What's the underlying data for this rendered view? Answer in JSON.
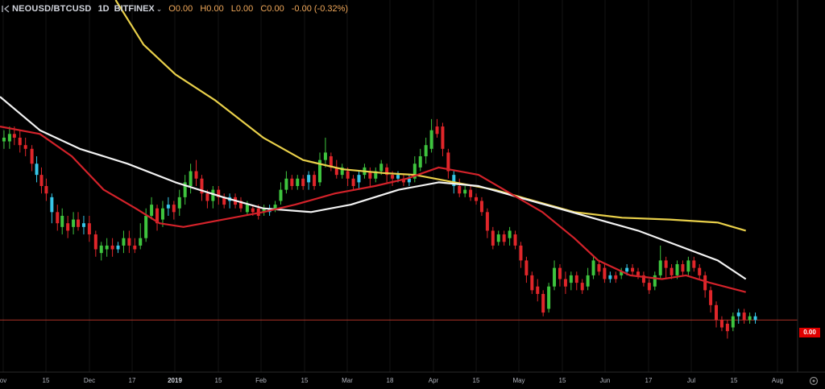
{
  "header": {
    "symbol": "NEOUSD/BTCUSD",
    "timeframe": "1D",
    "exchange": "BITFINEX",
    "open": "O0.00",
    "high": "H0.00",
    "low": "L0.00",
    "close": "C0.00",
    "change": "-0.00 (-0.32%)"
  },
  "price_label": "0.00",
  "colors": {
    "up": "#3ec43e",
    "down": "#e0262a",
    "up_hollow": "#37c6e8",
    "ma_yellow": "#e9d04a",
    "ma_white": "#f2f2f2",
    "ma_red": "#d3222a",
    "price_line": "#c0392b"
  },
  "chart_data": {
    "type": "candlestick",
    "x_ticks": [
      "ov",
      "15",
      "Dec",
      "17",
      "2019",
      "15",
      "Feb",
      "15",
      "Mar",
      "18",
      "Apr",
      "15",
      "May",
      "15",
      "Jun",
      "17",
      "Jul",
      "15",
      "Aug"
    ],
    "x_tick_strong": [
      "2019"
    ],
    "series": [
      {
        "color_key": "ma_yellow",
        "points": [
          [
            0.145,
            0.0
          ],
          [
            0.18,
            0.12
          ],
          [
            0.22,
            0.2
          ],
          [
            0.27,
            0.27
          ],
          [
            0.33,
            0.37
          ],
          [
            0.38,
            0.43
          ],
          [
            0.43,
            0.455
          ],
          [
            0.48,
            0.465
          ],
          [
            0.52,
            0.47
          ],
          [
            0.57,
            0.49
          ],
          [
            0.62,
            0.51
          ],
          [
            0.67,
            0.54
          ],
          [
            0.72,
            0.57
          ],
          [
            0.78,
            0.585
          ],
          [
            0.84,
            0.59
          ],
          [
            0.9,
            0.598
          ],
          [
            0.935,
            0.62
          ]
        ]
      },
      {
        "color_key": "ma_white",
        "points": [
          [
            0.0,
            0.26
          ],
          [
            0.05,
            0.35
          ],
          [
            0.1,
            0.4
          ],
          [
            0.16,
            0.44
          ],
          [
            0.22,
            0.49
          ],
          [
            0.28,
            0.53
          ],
          [
            0.33,
            0.56
          ],
          [
            0.39,
            0.57
          ],
          [
            0.44,
            0.55
          ],
          [
            0.5,
            0.51
          ],
          [
            0.55,
            0.49
          ],
          [
            0.6,
            0.5
          ],
          [
            0.65,
            0.53
          ],
          [
            0.7,
            0.56
          ],
          [
            0.75,
            0.59
          ],
          [
            0.8,
            0.62
          ],
          [
            0.85,
            0.66
          ],
          [
            0.9,
            0.7
          ],
          [
            0.935,
            0.75
          ]
        ]
      },
      {
        "color_key": "ma_red",
        "points": [
          [
            0.0,
            0.34
          ],
          [
            0.05,
            0.36
          ],
          [
            0.09,
            0.42
          ],
          [
            0.13,
            0.51
          ],
          [
            0.17,
            0.56
          ],
          [
            0.2,
            0.6
          ],
          [
            0.23,
            0.61
          ],
          [
            0.28,
            0.59
          ],
          [
            0.33,
            0.57
          ],
          [
            0.37,
            0.55
          ],
          [
            0.42,
            0.52
          ],
          [
            0.47,
            0.5
          ],
          [
            0.51,
            0.48
          ],
          [
            0.55,
            0.45
          ],
          [
            0.6,
            0.47
          ],
          [
            0.64,
            0.52
          ],
          [
            0.68,
            0.57
          ],
          [
            0.72,
            0.64
          ],
          [
            0.75,
            0.7
          ],
          [
            0.79,
            0.74
          ],
          [
            0.83,
            0.75
          ],
          [
            0.86,
            0.74
          ],
          [
            0.89,
            0.76
          ],
          [
            0.935,
            0.785
          ]
        ]
      },
      {
        "color_key": "price_line",
        "points": [
          [
            0.0,
            0.86
          ],
          [
            1.0,
            0.86
          ]
        ]
      }
    ],
    "candles": [
      [
        0.005,
        0.37,
        0.38,
        0.35,
        0.4,
        "up"
      ],
      [
        0.012,
        0.38,
        0.36,
        0.34,
        0.4,
        "up"
      ],
      [
        0.018,
        0.36,
        0.37,
        0.34,
        0.39,
        "down"
      ],
      [
        0.025,
        0.37,
        0.39,
        0.35,
        0.41,
        "down"
      ],
      [
        0.032,
        0.39,
        0.4,
        0.37,
        0.42,
        "down"
      ],
      [
        0.04,
        0.4,
        0.44,
        0.39,
        0.46,
        "down"
      ],
      [
        0.046,
        0.44,
        0.47,
        0.42,
        0.49,
        "hollow"
      ],
      [
        0.052,
        0.47,
        0.5,
        0.45,
        0.52,
        "down"
      ],
      [
        0.058,
        0.5,
        0.52,
        0.48,
        0.54,
        "down"
      ],
      [
        0.065,
        0.53,
        0.57,
        0.52,
        0.6,
        "hollow"
      ],
      [
        0.072,
        0.57,
        0.6,
        0.55,
        0.62,
        "down"
      ],
      [
        0.078,
        0.58,
        0.61,
        0.56,
        0.63,
        "up"
      ],
      [
        0.085,
        0.6,
        0.62,
        0.58,
        0.64,
        "down"
      ],
      [
        0.092,
        0.61,
        0.59,
        0.57,
        0.63,
        "up"
      ],
      [
        0.098,
        0.59,
        0.61,
        0.57,
        0.62,
        "down"
      ],
      [
        0.105,
        0.61,
        0.6,
        0.58,
        0.63,
        "hollow"
      ],
      [
        0.112,
        0.6,
        0.63,
        0.58,
        0.65,
        "down"
      ],
      [
        0.12,
        0.63,
        0.67,
        0.62,
        0.69,
        "down"
      ],
      [
        0.127,
        0.66,
        0.68,
        0.65,
        0.7,
        "up"
      ],
      [
        0.134,
        0.67,
        0.66,
        0.64,
        0.69,
        "up"
      ],
      [
        0.141,
        0.66,
        0.67,
        0.64,
        0.69,
        "down"
      ],
      [
        0.148,
        0.67,
        0.66,
        0.65,
        0.68,
        "hollow"
      ],
      [
        0.155,
        0.66,
        0.64,
        0.62,
        0.68,
        "up"
      ],
      [
        0.162,
        0.64,
        0.66,
        0.62,
        0.68,
        "down"
      ],
      [
        0.169,
        0.66,
        0.67,
        0.64,
        0.68,
        "down"
      ],
      [
        0.176,
        0.66,
        0.64,
        0.6,
        0.67,
        "up"
      ],
      [
        0.183,
        0.64,
        0.58,
        0.56,
        0.65,
        "up"
      ],
      [
        0.19,
        0.58,
        0.55,
        0.53,
        0.59,
        "up"
      ],
      [
        0.197,
        0.56,
        0.6,
        0.55,
        0.62,
        "down"
      ],
      [
        0.204,
        0.59,
        0.56,
        0.54,
        0.61,
        "up"
      ],
      [
        0.211,
        0.56,
        0.55,
        0.53,
        0.58,
        "hollow"
      ],
      [
        0.218,
        0.55,
        0.57,
        0.54,
        0.59,
        "down"
      ],
      [
        0.225,
        0.56,
        0.53,
        0.51,
        0.58,
        "up"
      ],
      [
        0.232,
        0.53,
        0.49,
        0.47,
        0.55,
        "up"
      ],
      [
        0.239,
        0.5,
        0.46,
        0.44,
        0.52,
        "up"
      ],
      [
        0.246,
        0.46,
        0.48,
        0.43,
        0.5,
        "down"
      ],
      [
        0.253,
        0.48,
        0.52,
        0.47,
        0.54,
        "down"
      ],
      [
        0.26,
        0.52,
        0.54,
        0.51,
        0.56,
        "down"
      ],
      [
        0.267,
        0.54,
        0.51,
        0.5,
        0.56,
        "up"
      ],
      [
        0.274,
        0.51,
        0.53,
        0.5,
        0.55,
        "down"
      ],
      [
        0.281,
        0.53,
        0.55,
        0.52,
        0.56,
        "down"
      ],
      [
        0.288,
        0.54,
        0.53,
        0.52,
        0.56,
        "hollow"
      ],
      [
        0.295,
        0.53,
        0.55,
        0.52,
        0.56,
        "down"
      ],
      [
        0.302,
        0.54,
        0.56,
        0.53,
        0.57,
        "down"
      ],
      [
        0.31,
        0.55,
        0.57,
        0.54,
        0.58,
        "up"
      ],
      [
        0.317,
        0.56,
        0.57,
        0.55,
        0.58,
        "down"
      ],
      [
        0.324,
        0.56,
        0.58,
        0.55,
        0.59,
        "down"
      ],
      [
        0.331,
        0.57,
        0.56,
        0.55,
        0.58,
        "up"
      ],
      [
        0.338,
        0.56,
        0.57,
        0.55,
        0.58,
        "hollow"
      ],
      [
        0.345,
        0.56,
        0.55,
        0.54,
        0.57,
        "up"
      ],
      [
        0.352,
        0.54,
        0.51,
        0.49,
        0.55,
        "up"
      ],
      [
        0.359,
        0.51,
        0.48,
        0.46,
        0.52,
        "up"
      ],
      [
        0.366,
        0.48,
        0.5,
        0.47,
        0.51,
        "down"
      ],
      [
        0.373,
        0.5,
        0.48,
        0.47,
        0.51,
        "up"
      ],
      [
        0.38,
        0.48,
        0.5,
        0.47,
        0.51,
        "down"
      ],
      [
        0.387,
        0.49,
        0.47,
        0.46,
        0.51,
        "hollow"
      ],
      [
        0.394,
        0.47,
        0.5,
        0.46,
        0.51,
        "down"
      ],
      [
        0.401,
        0.49,
        0.43,
        0.41,
        0.5,
        "up"
      ],
      [
        0.408,
        0.43,
        0.41,
        0.37,
        0.45,
        "up"
      ],
      [
        0.415,
        0.42,
        0.45,
        0.41,
        0.46,
        "down"
      ],
      [
        0.422,
        0.45,
        0.47,
        0.43,
        0.48,
        "down"
      ],
      [
        0.429,
        0.47,
        0.45,
        0.44,
        0.48,
        "up"
      ],
      [
        0.436,
        0.46,
        0.48,
        0.45,
        0.5,
        "down"
      ],
      [
        0.443,
        0.48,
        0.5,
        0.47,
        0.51,
        "down"
      ],
      [
        0.45,
        0.49,
        0.47,
        0.46,
        0.51,
        "hollow"
      ],
      [
        0.457,
        0.47,
        0.45,
        0.44,
        0.48,
        "up"
      ],
      [
        0.464,
        0.46,
        0.48,
        0.45,
        0.5,
        "down"
      ],
      [
        0.471,
        0.48,
        0.46,
        0.45,
        0.49,
        "up"
      ],
      [
        0.478,
        0.46,
        0.44,
        0.43,
        0.47,
        "up"
      ],
      [
        0.485,
        0.45,
        0.47,
        0.44,
        0.49,
        "down"
      ],
      [
        0.492,
        0.47,
        0.48,
        0.46,
        0.5,
        "down"
      ],
      [
        0.499,
        0.48,
        0.47,
        0.46,
        0.49,
        "hollow"
      ],
      [
        0.506,
        0.48,
        0.49,
        0.47,
        0.5,
        "down"
      ],
      [
        0.513,
        0.49,
        0.48,
        0.47,
        0.5,
        "hollow"
      ],
      [
        0.52,
        0.48,
        0.44,
        0.42,
        0.49,
        "up"
      ],
      [
        0.527,
        0.45,
        0.42,
        0.4,
        0.46,
        "up"
      ],
      [
        0.534,
        0.42,
        0.39,
        0.37,
        0.44,
        "up"
      ],
      [
        0.541,
        0.4,
        0.35,
        0.32,
        0.41,
        "up"
      ],
      [
        0.548,
        0.36,
        0.34,
        0.32,
        0.37,
        "down"
      ],
      [
        0.555,
        0.34,
        0.4,
        0.33,
        0.42,
        "down"
      ],
      [
        0.562,
        0.41,
        0.46,
        0.4,
        0.48,
        "down"
      ],
      [
        0.569,
        0.47,
        0.5,
        0.46,
        0.52,
        "hollow"
      ],
      [
        0.576,
        0.5,
        0.52,
        0.48,
        0.53,
        "down"
      ],
      [
        0.583,
        0.52,
        0.51,
        0.5,
        0.53,
        "up"
      ],
      [
        0.59,
        0.51,
        0.53,
        0.5,
        0.54,
        "down"
      ],
      [
        0.597,
        0.53,
        0.54,
        0.52,
        0.55,
        "down"
      ],
      [
        0.604,
        0.54,
        0.57,
        0.53,
        0.58,
        "down"
      ],
      [
        0.611,
        0.57,
        0.62,
        0.56,
        0.64,
        "down"
      ],
      [
        0.618,
        0.62,
        0.66,
        0.61,
        0.67,
        "down"
      ],
      [
        0.625,
        0.65,
        0.63,
        0.62,
        0.66,
        "up"
      ],
      [
        0.632,
        0.63,
        0.65,
        0.62,
        0.66,
        "down"
      ],
      [
        0.639,
        0.64,
        0.62,
        0.61,
        0.66,
        "up"
      ],
      [
        0.646,
        0.63,
        0.66,
        0.62,
        0.67,
        "down"
      ],
      [
        0.653,
        0.66,
        0.7,
        0.65,
        0.72,
        "down"
      ],
      [
        0.66,
        0.7,
        0.74,
        0.69,
        0.76,
        "down"
      ],
      [
        0.667,
        0.74,
        0.78,
        0.73,
        0.79,
        "down"
      ],
      [
        0.674,
        0.77,
        0.79,
        0.75,
        0.81,
        "down"
      ],
      [
        0.681,
        0.79,
        0.84,
        0.78,
        0.85,
        "down"
      ],
      [
        0.688,
        0.83,
        0.77,
        0.76,
        0.84,
        "up"
      ],
      [
        0.695,
        0.77,
        0.72,
        0.7,
        0.78,
        "up"
      ],
      [
        0.702,
        0.72,
        0.75,
        0.71,
        0.77,
        "down"
      ],
      [
        0.709,
        0.75,
        0.77,
        0.73,
        0.79,
        "down"
      ],
      [
        0.716,
        0.76,
        0.74,
        0.73,
        0.78,
        "up"
      ],
      [
        0.723,
        0.74,
        0.76,
        0.73,
        0.78,
        "down"
      ],
      [
        0.73,
        0.76,
        0.78,
        0.75,
        0.79,
        "down"
      ],
      [
        0.737,
        0.77,
        0.74,
        0.72,
        0.78,
        "up"
      ],
      [
        0.744,
        0.74,
        0.7,
        0.69,
        0.75,
        "up"
      ],
      [
        0.751,
        0.71,
        0.73,
        0.7,
        0.74,
        "down"
      ],
      [
        0.758,
        0.72,
        0.75,
        0.71,
        0.76,
        "down"
      ],
      [
        0.765,
        0.75,
        0.74,
        0.73,
        0.76,
        "hollow"
      ],
      [
        0.772,
        0.74,
        0.75,
        0.73,
        0.76,
        "down"
      ],
      [
        0.779,
        0.74,
        0.73,
        0.72,
        0.75,
        "up"
      ],
      [
        0.786,
        0.73,
        0.72,
        0.71,
        0.74,
        "hollow"
      ],
      [
        0.793,
        0.72,
        0.73,
        0.71,
        0.74,
        "down"
      ],
      [
        0.8,
        0.73,
        0.74,
        0.72,
        0.75,
        "down"
      ],
      [
        0.807,
        0.74,
        0.76,
        0.73,
        0.77,
        "down"
      ],
      [
        0.814,
        0.76,
        0.78,
        0.75,
        0.79,
        "down"
      ],
      [
        0.821,
        0.77,
        0.74,
        0.73,
        0.78,
        "up"
      ],
      [
        0.828,
        0.74,
        0.7,
        0.66,
        0.75,
        "up"
      ],
      [
        0.835,
        0.7,
        0.72,
        0.69,
        0.75,
        "down"
      ],
      [
        0.842,
        0.72,
        0.74,
        0.71,
        0.75,
        "down"
      ],
      [
        0.849,
        0.74,
        0.71,
        0.7,
        0.75,
        "up"
      ],
      [
        0.856,
        0.71,
        0.73,
        0.7,
        0.74,
        "down"
      ],
      [
        0.863,
        0.73,
        0.7,
        0.69,
        0.74,
        "up"
      ],
      [
        0.87,
        0.7,
        0.72,
        0.69,
        0.73,
        "down"
      ],
      [
        0.877,
        0.72,
        0.74,
        0.71,
        0.75,
        "down"
      ],
      [
        0.884,
        0.74,
        0.78,
        0.73,
        0.8,
        "down"
      ],
      [
        0.891,
        0.78,
        0.82,
        0.77,
        0.84,
        "down"
      ],
      [
        0.898,
        0.82,
        0.86,
        0.81,
        0.88,
        "down"
      ],
      [
        0.905,
        0.86,
        0.88,
        0.85,
        0.89,
        "down"
      ],
      [
        0.912,
        0.87,
        0.89,
        0.86,
        0.91,
        "down"
      ],
      [
        0.919,
        0.88,
        0.85,
        0.84,
        0.89,
        "up"
      ],
      [
        0.926,
        0.85,
        0.84,
        0.83,
        0.87,
        "hollow"
      ],
      [
        0.933,
        0.84,
        0.86,
        0.83,
        0.87,
        "down"
      ],
      [
        0.94,
        0.86,
        0.85,
        0.84,
        0.87,
        "up"
      ],
      [
        0.947,
        0.85,
        0.86,
        0.84,
        0.87,
        "hollow"
      ]
    ]
  }
}
